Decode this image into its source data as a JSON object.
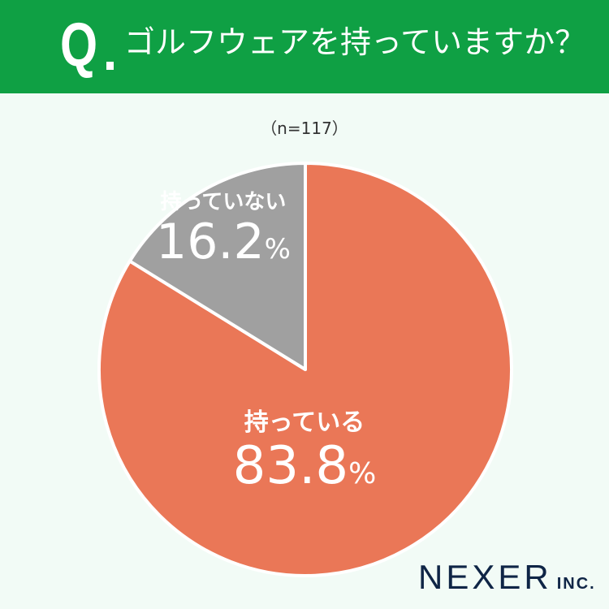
{
  "header": {
    "q_mark": "Q",
    "title": "ゴルフウェアを持っていますか？"
  },
  "sample_size": "（n=117）",
  "chart_data": {
    "type": "pie",
    "title": "ゴルフウェアを持っていますか？",
    "slices": [
      {
        "label": "持っている",
        "value": 83.8,
        "display": "83.8",
        "unit": "%",
        "color": "#ea7757"
      },
      {
        "label": "持っていない",
        "value": 16.2,
        "display": "16.2",
        "unit": "%",
        "color": "#a0a0a0"
      }
    ],
    "start": "12 o'clock, clockwise",
    "legend": "none"
  },
  "logo": {
    "name": "NEXER",
    "suffix": "INC."
  }
}
